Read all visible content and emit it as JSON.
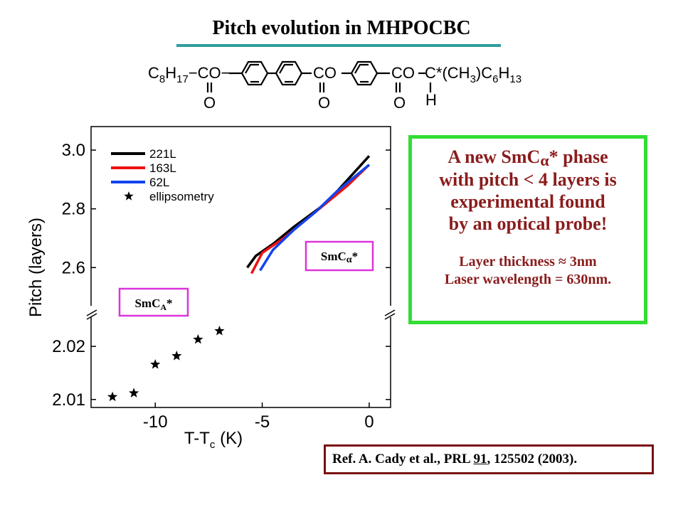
{
  "slide_title": "Pitch evolution in MHPOCBC",
  "molecule": {
    "left_chain": {
      "base": "C",
      "sub1": "8",
      "mid": "H",
      "sub2": "17",
      "tail": "−CO−"
    },
    "groups": [
      "CO",
      "CO"
    ],
    "carbonyl_o": "O",
    "right_chain": "C*(CH",
    "right_sub1": "3",
    "right_mid": ")C",
    "right_sub2": "6",
    "right_mid2": "H",
    "right_sub3": "13",
    "hydrogen": "H"
  },
  "chart_data": {
    "type": "line",
    "xlabel": "T-T",
    "xlabel_sub": "c",
    "xlabel_unit": " (K)",
    "ylabel": "Pitch (layers)",
    "xlim": [
      -13,
      1
    ],
    "x_ticks": [
      -10,
      -5,
      0
    ],
    "x_tick_labels": [
      "-10",
      "-5",
      "0"
    ],
    "y_axis_broken": true,
    "upper_ylim": [
      2.47,
      3.08
    ],
    "upper_y_ticks": [
      3.0,
      2.8,
      2.6
    ],
    "upper_y_tick_labels": [
      "3.0",
      "2.8",
      "2.6"
    ],
    "lower_ylim": [
      2.0085,
      2.0255
    ],
    "lower_y_ticks": [
      2.02,
      2.01
    ],
    "lower_y_tick_labels": [
      "2.02",
      "2.01"
    ],
    "series": [
      {
        "name": "221L",
        "color": "#000000",
        "panel": "upper",
        "x": [
          -5.7,
          -5.3,
          -4.5,
          -3.5,
          -2.0,
          -1.0,
          0.0
        ],
        "y": [
          2.6,
          2.64,
          2.68,
          2.74,
          2.82,
          2.9,
          2.98
        ]
      },
      {
        "name": "163L",
        "color": "#ee1111",
        "panel": "upper",
        "x": [
          -5.5,
          -5.0,
          -4.0,
          -3.0,
          -2.0,
          -1.0,
          0.0
        ],
        "y": [
          2.58,
          2.65,
          2.7,
          2.76,
          2.82,
          2.88,
          2.95
        ]
      },
      {
        "name": "62L",
        "color": "#1144ee",
        "panel": "upper",
        "x": [
          -5.1,
          -4.5,
          -3.5,
          -2.5,
          -1.5,
          -0.5,
          0.0
        ],
        "y": [
          2.59,
          2.66,
          2.73,
          2.79,
          2.86,
          2.92,
          2.95
        ]
      },
      {
        "name": "ellipsometry",
        "marker": "star",
        "panel": "lower",
        "x": [
          -12.0,
          -11.0,
          -10.0,
          -9.0,
          -8.0,
          -7.0
        ],
        "y": [
          2.0105,
          2.0112,
          2.0166,
          2.0182,
          2.0213,
          2.0229
        ]
      }
    ],
    "phase_labels": [
      {
        "text": "SmC",
        "sub": "A",
        "tail": "*"
      },
      {
        "text": "SmC",
        "greek": "α",
        "tail": "*"
      }
    ]
  },
  "info_box": {
    "line1": "A new SmC",
    "line1_greek": "α",
    "line1_tail": "* phase",
    "line2": "with pitch < 4 layers is",
    "line3": "experimental found",
    "line4": "by an optical probe!",
    "line5": "Layer thickness ≈ 3nm",
    "line6": "Laser wavelength = 630nm."
  },
  "reference": {
    "prefix": "Ref. A. Cady et al., PRL ",
    "volume": "91",
    "suffix": ", 125502 (2003)."
  },
  "colors": {
    "title_underline": "#2e9d9d",
    "info_border": "#33dd33",
    "info_text": "#8a1c1c",
    "ref_border": "#7a1010",
    "phase_box_border": "#dd33dd"
  }
}
